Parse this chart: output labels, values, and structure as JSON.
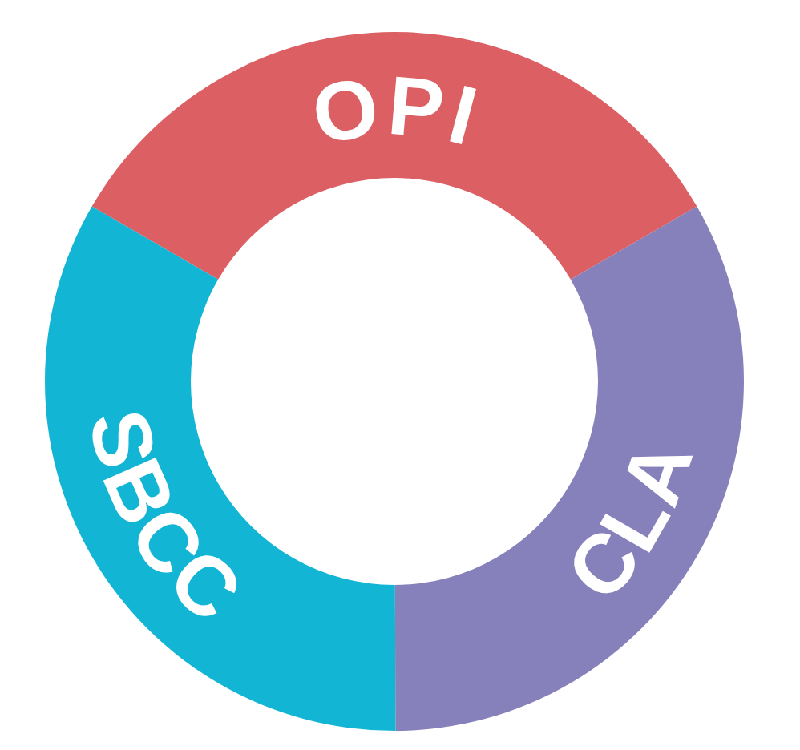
{
  "chart_data": {
    "type": "donut",
    "categories": [
      "OPI",
      "CLA",
      "SBCC"
    ],
    "values": [
      33.3,
      33.3,
      33.4
    ],
    "colors": [
      "#dc5f63",
      "#8680bb",
      "#12b5d3"
    ]
  }
}
